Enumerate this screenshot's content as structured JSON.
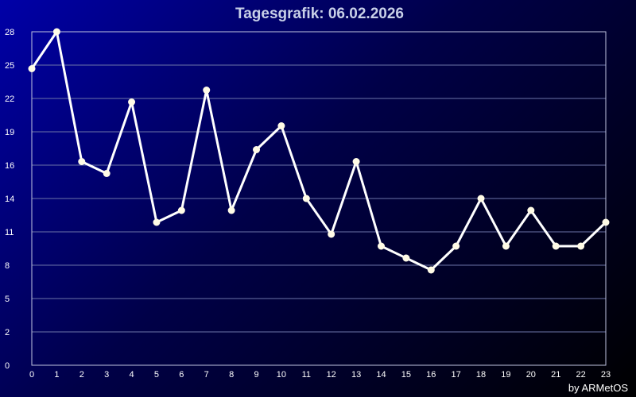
{
  "chart_data": {
    "type": "line",
    "title": "Tagesgrafik: 06.02.2026",
    "xlabel": "",
    "ylabel": "",
    "x": [
      0,
      1,
      2,
      3,
      4,
      5,
      6,
      7,
      8,
      9,
      10,
      11,
      12,
      13,
      14,
      15,
      16,
      17,
      18,
      19,
      20,
      21,
      22,
      23
    ],
    "x_tick_labels": [
      "0",
      "1",
      "2",
      "3",
      "4",
      "5",
      "6",
      "7",
      "8",
      "9",
      "10",
      "11",
      "12",
      "13",
      "14",
      "15",
      "16",
      "17",
      "18",
      "19",
      "20",
      "21",
      "22",
      "23"
    ],
    "y_tick_labels": [
      "0",
      "2",
      "5",
      "8",
      "11",
      "14",
      "16",
      "19",
      "22",
      "25",
      "28"
    ],
    "ylim": [
      0,
      28
    ],
    "grid": true,
    "series": [
      {
        "values": [
          24.9,
          28.0,
          17.1,
          16.1,
          22.1,
          12.0,
          13.0,
          23.1,
          13.0,
          18.1,
          20.1,
          14.0,
          11.0,
          17.1,
          10.0,
          9.0,
          8.0,
          10.0,
          14.0,
          10.0,
          13.0,
          10.0,
          10.0,
          12.0
        ]
      }
    ],
    "credit": "by ARMetOS",
    "colors": {
      "line": "#ffffff",
      "marker": "#fffbe6",
      "grid": "#6c74a8"
    }
  }
}
